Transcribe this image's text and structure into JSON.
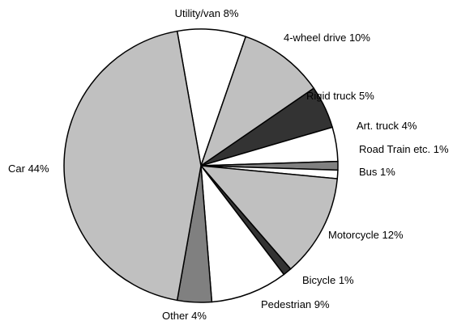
{
  "chart_data": {
    "type": "pie",
    "categories": [
      "Utility/van",
      "4-wheel drive",
      "Rigid truck",
      "Art. truck",
      "Road Train etc.",
      "Bus",
      "Motorcycle",
      "Bicycle",
      "Pedestrian",
      "Other",
      "Car"
    ],
    "values": [
      8,
      10,
      5,
      4,
      1,
      1,
      12,
      1,
      9,
      4,
      44
    ],
    "value_labels": [
      "8%",
      "10%",
      "5%",
      "4%",
      "1%",
      "1%",
      "12%",
      "1%",
      "9%",
      "4%",
      "44%"
    ],
    "colors": [
      "#ffffff",
      "#c0c0c0",
      "#333333",
      "#ffffff",
      "#808080",
      "#ffffff",
      "#c0c0c0",
      "#333333",
      "#ffffff",
      "#808080",
      "#c0c0c0"
    ]
  }
}
